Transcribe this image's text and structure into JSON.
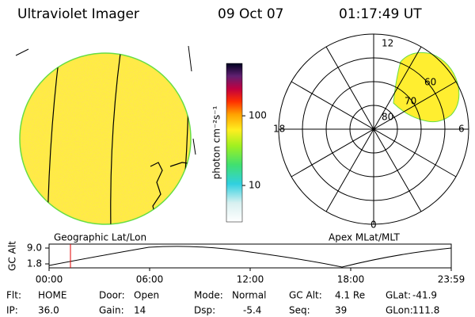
{
  "header": {
    "title": "Ultraviolet Imager",
    "date": "09 Oct 07",
    "time": "01:17:49 UT"
  },
  "colorbar": {
    "label": "photon cm⁻²s⁻¹",
    "scale": "log",
    "range": [
      3,
      565
    ],
    "ticks": [
      10,
      100
    ]
  },
  "left_panel": {
    "label": "Geographic Lat/Lon"
  },
  "right_panel": {
    "label": "Apex MLat/MLT",
    "mlt_labels": [
      "12",
      "18",
      "6",
      "0"
    ],
    "mlat_labels": [
      "60",
      "70",
      "80"
    ]
  },
  "altitude_plot": {
    "ylabel": "GC Alt",
    "ylim": [
      1.8,
      9.0
    ],
    "yticks": [
      {
        "value": 9.0,
        "label": "9.0"
      },
      {
        "value": 1.8,
        "label": "1.8"
      }
    ],
    "xticks": [
      "00:00",
      "06:00",
      "12:00",
      "18:00",
      "23:59"
    ]
  },
  "status": [
    [
      {
        "label": "Flt:",
        "value": "HOME"
      },
      {
        "label": "Door:",
        "value": "Open"
      },
      {
        "label": "Mode:",
        "value": "Normal"
      },
      {
        "label": "GC Alt:",
        "value": "4.1 Re"
      },
      {
        "label": "GLat:",
        "value": "-41.9"
      }
    ],
    [
      {
        "label": "IP:",
        "value": "36.0"
      },
      {
        "label": "Gain:",
        "value": "14"
      },
      {
        "label": "Dsp:",
        "value": "-5.4"
      },
      {
        "label": "Seq:",
        "value": "39"
      },
      {
        "label": "GLon:",
        "value": "111.8"
      }
    ]
  ]
}
